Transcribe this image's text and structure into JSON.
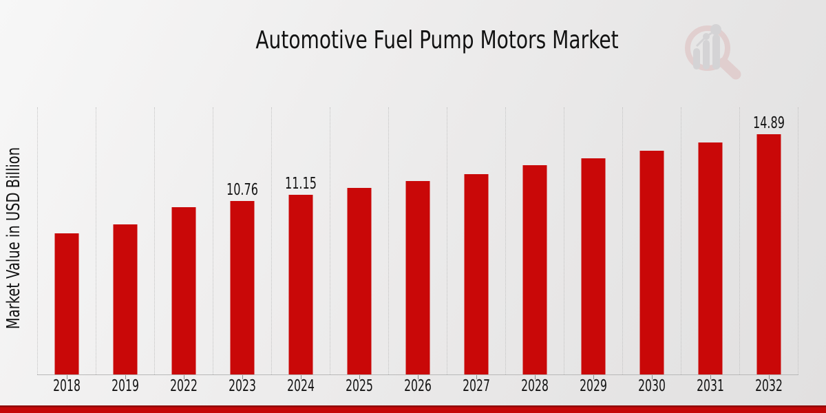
{
  "page": {
    "title": "Automotive Fuel Pump Motors Market"
  },
  "watermark": {
    "icon": "magnifier-bar-chart-logo"
  },
  "colors": {
    "bar": "#c90808",
    "bottom_strip": "#c40808",
    "bottom_strip_edge": "#8f0707",
    "gridline": "#c2c2c2",
    "axis_line": "#b8b8b8",
    "text": "#121212",
    "watermark_pink": "#dcb9b9",
    "watermark_gray": "#c2c2c6"
  },
  "chart_data": {
    "type": "bar",
    "title": "Automotive Fuel Pump Motors Market",
    "xlabel": "",
    "ylabel": "Market Value in USD Billion",
    "categories": [
      "2018",
      "2019",
      "2022",
      "2023",
      "2024",
      "2025",
      "2026",
      "2027",
      "2028",
      "2029",
      "2030",
      "2031",
      "2032"
    ],
    "values": [
      8.73,
      9.3,
      10.35,
      10.76,
      11.15,
      11.55,
      12.0,
      12.43,
      12.95,
      13.4,
      13.85,
      14.37,
      14.89
    ],
    "data_labels": [
      "",
      "",
      "",
      "10.76",
      "11.15",
      "",
      "",
      "",
      "",
      "",
      "",
      "",
      "14.89"
    ],
    "ylim": [
      0,
      16.55
    ],
    "grid": "vertical-dotted",
    "legend": "none",
    "bar_color": "#c90808"
  }
}
